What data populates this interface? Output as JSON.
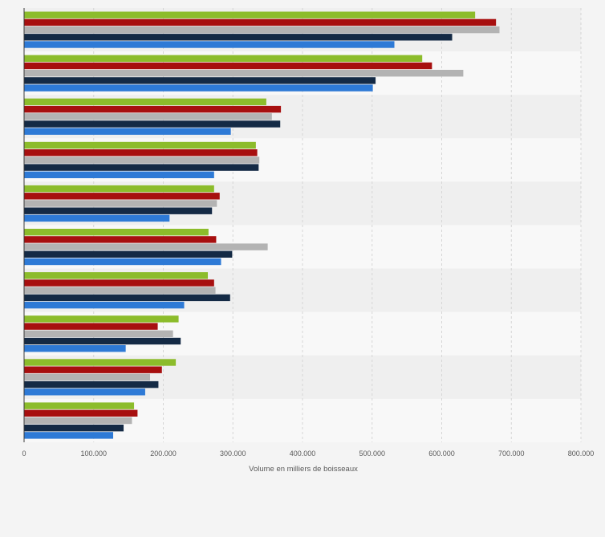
{
  "chart_data": {
    "type": "bar",
    "orientation": "horizontal",
    "title": "",
    "xlabel": "Volume en milliers de boisseaux",
    "ylabel": "",
    "xlim": [
      0,
      800000
    ],
    "xticks": [
      0,
      100000,
      200000,
      300000,
      400000,
      500000,
      600000,
      700000,
      800000
    ],
    "xtick_labels": [
      "0",
      "100.000",
      "200.000",
      "300.000",
      "400.000",
      "500.000",
      "600.000",
      "700.000",
      "800.000"
    ],
    "grid": "vertical dashed",
    "legend": "none",
    "category_count": 10,
    "series": [
      {
        "color": "#8cbc2b",
        "values": [
          648000,
          572000,
          348000,
          333000,
          273000,
          265000,
          264000,
          222000,
          218000,
          158000
        ]
      },
      {
        "color": "#a70f0f",
        "values": [
          678000,
          586000,
          369000,
          335000,
          281000,
          276000,
          273000,
          192000,
          198000,
          163000
        ]
      },
      {
        "color": "#b3b3b3",
        "values": [
          683000,
          631000,
          356000,
          338000,
          277000,
          350000,
          275000,
          214000,
          181000,
          155000
        ]
      },
      {
        "color": "#142a45",
        "values": [
          615000,
          505000,
          368000,
          337000,
          270000,
          299000,
          296000,
          225000,
          193000,
          143000
        ]
      },
      {
        "color": "#2e7ad6",
        "values": [
          532000,
          501000,
          297000,
          273000,
          209000,
          283000,
          230000,
          146000,
          174000,
          128000
        ]
      }
    ]
  }
}
